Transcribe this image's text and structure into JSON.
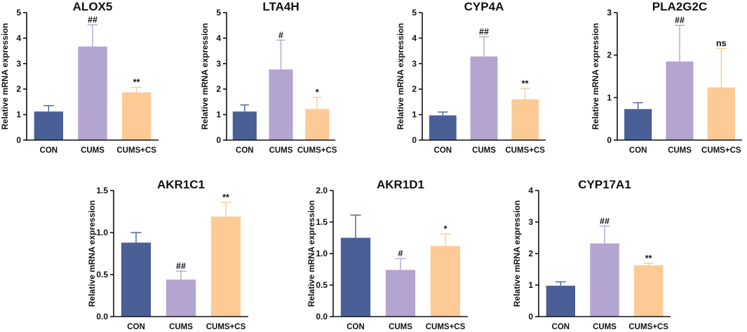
{
  "chart_data": [
    {
      "type": "bar",
      "title": "ALOX5",
      "ylabel": "Relative mRNA expression",
      "xlabel": "",
      "categories": [
        "CON",
        "CUMS",
        "CUMS+CS"
      ],
      "values": [
        1.12,
        3.67,
        1.87
      ],
      "errors": [
        0.23,
        0.85,
        0.2
      ],
      "significance": [
        "",
        "##",
        "**"
      ],
      "ylim": [
        0,
        5
      ],
      "yticks": [
        "0",
        "1",
        "2",
        "3",
        "4",
        "5"
      ]
    },
    {
      "type": "bar",
      "title": "LTA4H",
      "ylabel": "Relative mRNA expression",
      "xlabel": "",
      "categories": [
        "CON",
        "CUMS",
        "CUMS+CS"
      ],
      "values": [
        1.12,
        2.77,
        1.22
      ],
      "errors": [
        0.26,
        1.15,
        0.45
      ],
      "significance": [
        "",
        "#",
        "*"
      ],
      "ylim": [
        0,
        5
      ],
      "yticks": [
        "0",
        "1",
        "2",
        "3",
        "4",
        "5"
      ]
    },
    {
      "type": "bar",
      "title": "CYP4A",
      "ylabel": "Relative mRNA expression",
      "xlabel": "",
      "categories": [
        "CON",
        "CUMS",
        "CUMS+CS"
      ],
      "values": [
        0.97,
        3.28,
        1.6
      ],
      "errors": [
        0.13,
        0.77,
        0.42
      ],
      "significance": [
        "",
        "##",
        "**"
      ],
      "ylim": [
        0,
        5
      ],
      "yticks": [
        "0",
        "1",
        "2",
        "3",
        "4",
        "5"
      ]
    },
    {
      "type": "bar",
      "title": "PLA2G2C",
      "ylabel": "Relative mRNA expression",
      "xlabel": "",
      "categories": [
        "CON",
        "CUMS",
        "CUMS+CS"
      ],
      "values": [
        0.73,
        1.85,
        1.24
      ],
      "errors": [
        0.15,
        0.85,
        0.92
      ],
      "significance": [
        "",
        "##",
        "ns"
      ],
      "ylim": [
        0,
        3
      ],
      "yticks": [
        "0",
        "1",
        "2",
        "3"
      ]
    },
    {
      "type": "bar",
      "title": "AKR1C1",
      "ylabel": "Relative mRNA expression",
      "xlabel": "",
      "categories": [
        "CON",
        "CUMS",
        "CUMS+CS"
      ],
      "values": [
        0.88,
        0.44,
        1.19
      ],
      "errors": [
        0.12,
        0.1,
        0.17
      ],
      "significance": [
        "",
        "##",
        "**"
      ],
      "ylim": [
        0,
        1.5
      ],
      "yticks": [
        "0.0",
        "0.5",
        "1.0",
        "1.5"
      ]
    },
    {
      "type": "bar",
      "title": "AKR1D1",
      "ylabel": "Relative mRNA expression",
      "xlabel": "",
      "categories": [
        "CON",
        "CUMS",
        "CUMS+CS"
      ],
      "values": [
        1.25,
        0.74,
        1.12
      ],
      "errors": [
        0.36,
        0.18,
        0.19
      ],
      "significance": [
        "",
        "#",
        "*"
      ],
      "ylim": [
        0,
        2
      ],
      "yticks": [
        "0.0",
        "0.5",
        "1.0",
        "1.5",
        "2.0"
      ]
    },
    {
      "type": "bar",
      "title": "CYP17A1",
      "ylabel": "Relative mRNA expression",
      "xlabel": "",
      "categories": [
        "CON",
        "CUMS",
        "CUMS+CS"
      ],
      "values": [
        0.98,
        2.32,
        1.63
      ],
      "errors": [
        0.12,
        0.55,
        0.06
      ],
      "significance": [
        "",
        "##",
        "**"
      ],
      "ylim": [
        0,
        4
      ],
      "yticks": [
        "0",
        "1",
        "2",
        "3",
        "4"
      ]
    }
  ],
  "colors": {
    "bars": [
      "#4a5f96",
      "#b4a4d0",
      "#fccb95"
    ],
    "errorbars": [
      "#4a5f96",
      "#b4a4d0",
      "#fccb95"
    ],
    "axis": "#111111",
    "text": "#111111"
  }
}
